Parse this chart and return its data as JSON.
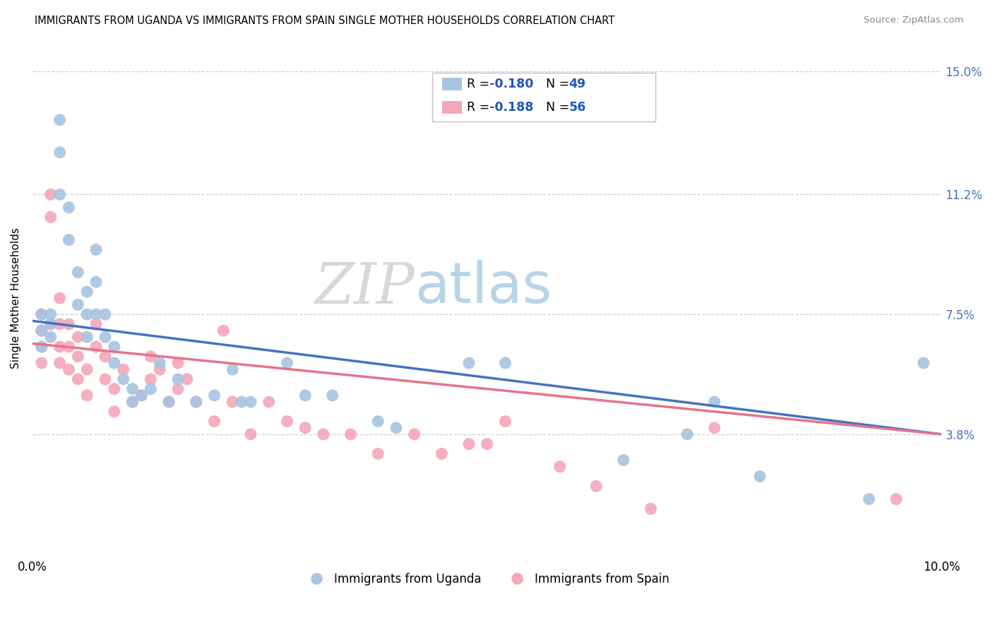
{
  "title": "IMMIGRANTS FROM UGANDA VS IMMIGRANTS FROM SPAIN SINGLE MOTHER HOUSEHOLDS CORRELATION CHART",
  "source": "Source: ZipAtlas.com",
  "ylabel": "Single Mother Households",
  "xlim": [
    0.0,
    0.1
  ],
  "ylim": [
    0.0,
    0.16
  ],
  "xticks": [
    0.0,
    0.02,
    0.04,
    0.06,
    0.08,
    0.1
  ],
  "xticklabels": [
    "0.0%",
    "",
    "",
    "",
    "",
    "10.0%"
  ],
  "yticks": [
    0.0,
    0.038,
    0.075,
    0.112,
    0.15
  ],
  "yticklabels": [
    "",
    "3.8%",
    "7.5%",
    "11.2%",
    "15.0%"
  ],
  "legend_labels": [
    "Immigrants from Uganda",
    "Immigrants from Spain"
  ],
  "color_uganda": "#a8c4e0",
  "color_spain": "#f4a7b9",
  "trendline_uganda_color": "#4472c4",
  "trendline_spain_color": "#e8728a",
  "uganda_trendline_x0": 0.0,
  "uganda_trendline_y0": 0.073,
  "uganda_trendline_x1": 0.1,
  "uganda_trendline_y1": 0.038,
  "spain_trendline_x0": 0.0,
  "spain_trendline_y0": 0.066,
  "spain_trendline_x1": 0.1,
  "spain_trendline_y1": 0.038,
  "watermark_zip": "ZIP",
  "watermark_atlas": "atlas",
  "background_color": "#ffffff",
  "grid_color": "#d0d0d0",
  "uganda_x": [
    0.001,
    0.001,
    0.001,
    0.002,
    0.002,
    0.002,
    0.003,
    0.003,
    0.003,
    0.004,
    0.004,
    0.005,
    0.005,
    0.006,
    0.006,
    0.006,
    0.007,
    0.007,
    0.007,
    0.008,
    0.008,
    0.009,
    0.009,
    0.01,
    0.011,
    0.011,
    0.012,
    0.013,
    0.014,
    0.015,
    0.016,
    0.018,
    0.02,
    0.022,
    0.023,
    0.024,
    0.028,
    0.03,
    0.033,
    0.038,
    0.04,
    0.048,
    0.052,
    0.065,
    0.072,
    0.075,
    0.08,
    0.092,
    0.098
  ],
  "uganda_y": [
    0.075,
    0.07,
    0.065,
    0.075,
    0.072,
    0.068,
    0.135,
    0.125,
    0.112,
    0.108,
    0.098,
    0.088,
    0.078,
    0.082,
    0.075,
    0.068,
    0.095,
    0.085,
    0.075,
    0.075,
    0.068,
    0.065,
    0.06,
    0.055,
    0.052,
    0.048,
    0.05,
    0.052,
    0.06,
    0.048,
    0.055,
    0.048,
    0.05,
    0.058,
    0.048,
    0.048,
    0.06,
    0.05,
    0.05,
    0.042,
    0.04,
    0.06,
    0.06,
    0.03,
    0.038,
    0.048,
    0.025,
    0.018,
    0.06
  ],
  "spain_x": [
    0.001,
    0.001,
    0.001,
    0.001,
    0.002,
    0.002,
    0.002,
    0.003,
    0.003,
    0.003,
    0.003,
    0.004,
    0.004,
    0.004,
    0.005,
    0.005,
    0.005,
    0.006,
    0.006,
    0.007,
    0.007,
    0.008,
    0.008,
    0.009,
    0.009,
    0.01,
    0.011,
    0.012,
    0.013,
    0.013,
    0.014,
    0.015,
    0.016,
    0.016,
    0.017,
    0.018,
    0.02,
    0.021,
    0.022,
    0.024,
    0.026,
    0.028,
    0.03,
    0.032,
    0.035,
    0.038,
    0.042,
    0.045,
    0.048,
    0.05,
    0.052,
    0.058,
    0.062,
    0.068,
    0.075,
    0.095
  ],
  "spain_y": [
    0.075,
    0.07,
    0.065,
    0.06,
    0.112,
    0.105,
    0.072,
    0.08,
    0.072,
    0.065,
    0.06,
    0.072,
    0.065,
    0.058,
    0.068,
    0.062,
    0.055,
    0.058,
    0.05,
    0.072,
    0.065,
    0.062,
    0.055,
    0.052,
    0.045,
    0.058,
    0.048,
    0.05,
    0.062,
    0.055,
    0.058,
    0.048,
    0.06,
    0.052,
    0.055,
    0.048,
    0.042,
    0.07,
    0.048,
    0.038,
    0.048,
    0.042,
    0.04,
    0.038,
    0.038,
    0.032,
    0.038,
    0.032,
    0.035,
    0.035,
    0.042,
    0.028,
    0.022,
    0.015,
    0.04,
    0.018
  ]
}
